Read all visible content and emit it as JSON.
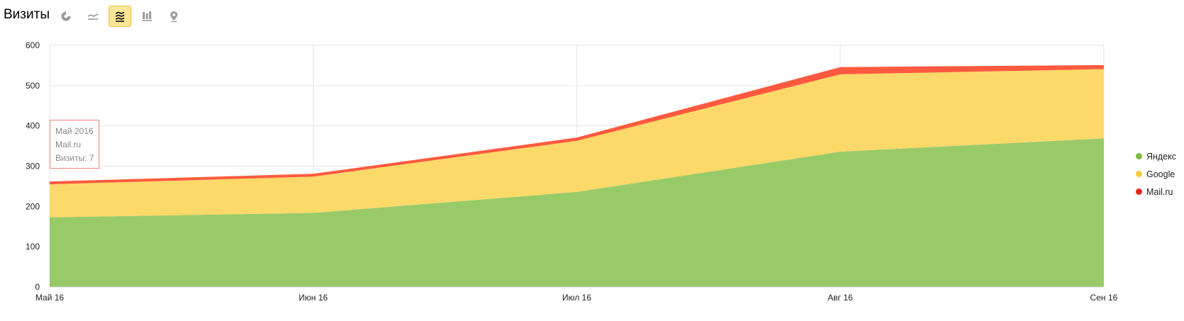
{
  "header": {
    "title": "Визиты",
    "tools": [
      {
        "icon": "pie-chart-icon",
        "active": false
      },
      {
        "icon": "line-chart-icon",
        "active": false
      },
      {
        "icon": "area-chart-icon",
        "active": true
      },
      {
        "icon": "bar-chart-icon",
        "active": false
      },
      {
        "icon": "map-pin-icon",
        "active": false
      }
    ]
  },
  "tooltip": {
    "period": "Май 2016",
    "series": "Mail.ru",
    "value_text": "Визиты: 7"
  },
  "colors": {
    "yandex": "#98cb68",
    "google": "#fdd96a",
    "mailru": "#ff5a3f",
    "yandex_dot": "#7cbd44",
    "google_dot": "#fbcc3f",
    "mailru_dot": "#e62b1d",
    "accent": "#fde695"
  },
  "chart_data": {
    "type": "area",
    "stacked": true,
    "categories": [
      "Май 16",
      "Июн 16",
      "Июл 16",
      "Авг 16",
      "Сен 16"
    ],
    "series": [
      {
        "name": "Яндекс",
        "values": [
          173,
          184,
          236,
          336,
          369
        ]
      },
      {
        "name": "Google",
        "values": [
          82,
          90,
          127,
          192,
          172
        ]
      },
      {
        "name": "Mail.ru",
        "values": [
          7,
          7,
          8,
          18,
          10
        ]
      }
    ],
    "ylim": [
      0,
      600
    ],
    "yticks": [
      0,
      100,
      200,
      300,
      400,
      500,
      600
    ],
    "grid": true,
    "legend": "right",
    "title": "",
    "xlabel": "",
    "ylabel": ""
  }
}
